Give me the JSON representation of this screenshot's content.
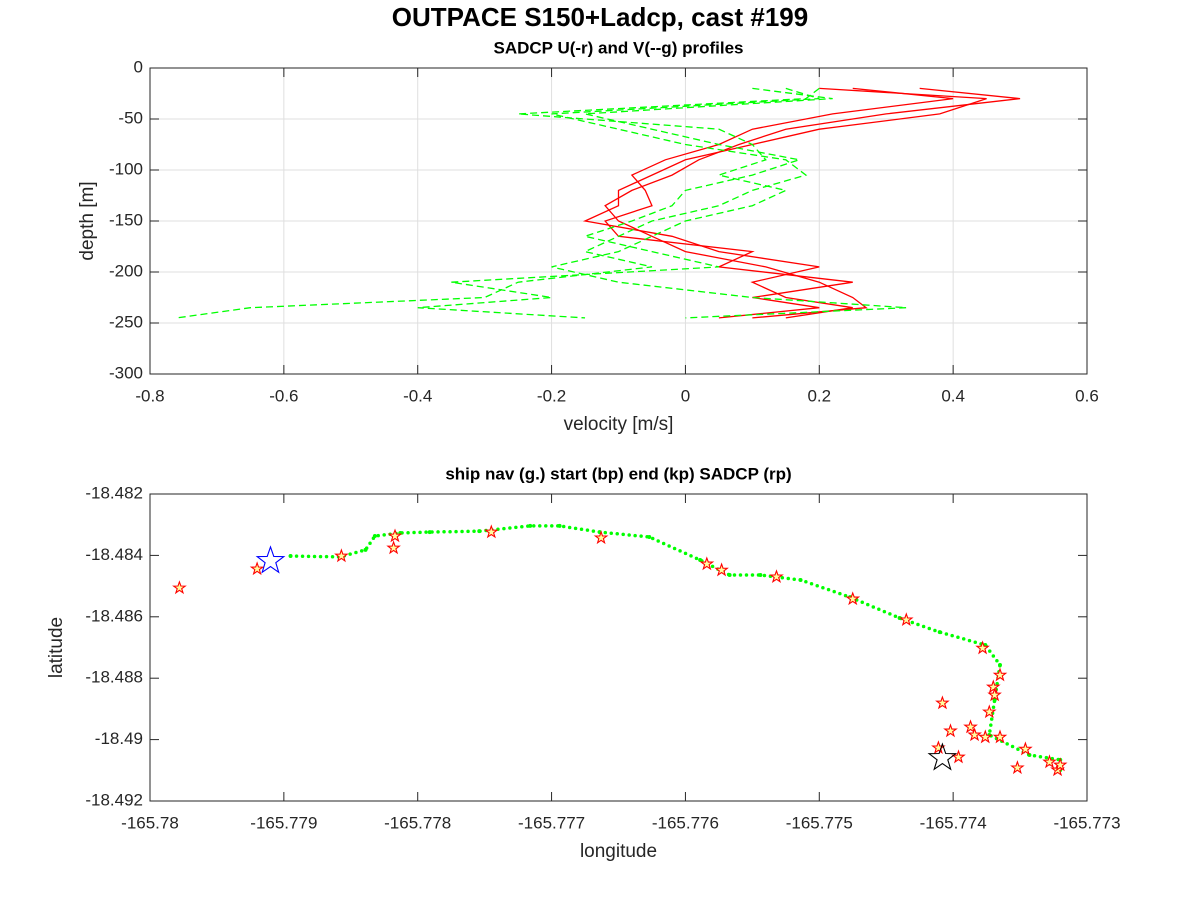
{
  "title": "OUTPACE S150+Ladcp, cast #199",
  "chart_data": [
    {
      "type": "line",
      "title": "SADCP U(-r) and V(--g) profiles",
      "xlabel": "velocity [m/s]",
      "ylabel": "depth [m]",
      "xlim": [
        -0.8,
        0.6
      ],
      "xticks": [
        -0.8,
        -0.6,
        -0.4,
        -0.2,
        0,
        0.2,
        0.4,
        0.6
      ],
      "ylim": [
        -300,
        0
      ],
      "yticks": [
        -300,
        -250,
        -200,
        -150,
        -100,
        -50,
        0
      ],
      "grid": true,
      "series": [
        {
          "color": "#ff0000",
          "dash": false,
          "x": [
            0.35,
            0.5,
            0.3,
            0.15,
            0.08,
            0.02,
            -0.02,
            -0.08,
            -0.12,
            -0.1,
            -0.05,
            0.0,
            0.12,
            0.2,
            0.25,
            0.27,
            0.1
          ],
          "values": [
            -20,
            -30,
            -45,
            -60,
            -75,
            -90,
            -105,
            -120,
            -135,
            -150,
            -165,
            -180,
            -195,
            -210,
            -225,
            -235,
            -245
          ]
        },
        {
          "color": "#ff0000",
          "dash": false,
          "x": [
            0.2,
            0.45,
            0.38,
            0.2,
            0.1,
            0.0,
            -0.05,
            -0.1,
            -0.1,
            -0.15,
            -0.02,
            0.05,
            0.2,
            0.1,
            0.15,
            0.25,
            0.15
          ],
          "values": [
            -20,
            -30,
            -45,
            -60,
            -75,
            -90,
            -105,
            -120,
            -135,
            -150,
            -165,
            -180,
            -195,
            -210,
            -225,
            -235,
            -245
          ]
        },
        {
          "color": "#ff0000",
          "dash": false,
          "x": [
            0.25,
            0.4,
            0.22,
            0.1,
            0.05,
            -0.03,
            -0.08,
            -0.06,
            -0.05,
            -0.12,
            -0.1,
            0.1,
            0.05,
            0.25,
            0.1,
            0.2,
            0.05
          ],
          "values": [
            -20,
            -30,
            -45,
            -60,
            -75,
            -90,
            -105,
            -120,
            -135,
            -150,
            -165,
            -180,
            -195,
            -210,
            -225,
            -235,
            -245
          ]
        },
        {
          "color": "#00ff00",
          "dash": true,
          "x": [
            0.15,
            0.2,
            -0.2,
            -0.1,
            0.0,
            0.15,
            0.18,
            0.1,
            0.05,
            -0.05,
            -0.1,
            -0.15,
            -0.05,
            -0.25,
            -0.3,
            -0.65,
            -0.76
          ],
          "values": [
            -20,
            -30,
            -45,
            -60,
            -75,
            -90,
            -105,
            -120,
            -135,
            -150,
            -165,
            -180,
            -195,
            -210,
            -225,
            -235,
            -245
          ]
        },
        {
          "color": "#00ff00",
          "dash": true,
          "x": [
            0.2,
            0.18,
            -0.25,
            0.05,
            0.1,
            0.12,
            0.05,
            0.15,
            0.1,
            0.0,
            -0.05,
            -0.1,
            -0.2,
            -0.1,
            0.1,
            0.33,
            0.0
          ],
          "values": [
            -20,
            -30,
            -45,
            -60,
            -75,
            -90,
            -105,
            -120,
            -135,
            -150,
            -165,
            -180,
            -195,
            -210,
            -225,
            -235,
            -245
          ]
        },
        {
          "color": "#00ff00",
          "dash": true,
          "x": [
            0.1,
            0.22,
            -0.15,
            -0.05,
            0.05,
            0.17,
            0.1,
            0.0,
            -0.02,
            -0.08,
            -0.15,
            -0.05,
            0.05,
            -0.35,
            -0.2,
            -0.4,
            -0.15
          ],
          "values": [
            -20,
            -30,
            -45,
            -60,
            -75,
            -90,
            -105,
            -120,
            -135,
            -150,
            -165,
            -180,
            -195,
            -210,
            -225,
            -235,
            -245
          ]
        }
      ]
    },
    {
      "type": "scatter",
      "title": "ship nav (g.) start (bp) end (kp) SADCP (rp)",
      "xlabel": "longitude",
      "ylabel": "latitude",
      "xlim": [
        -165.78,
        -165.773
      ],
      "xticks": [
        -165.78,
        -165.779,
        -165.778,
        -165.777,
        -165.776,
        -165.775,
        -165.774,
        -165.773
      ],
      "ylim": [
        -18.492,
        -18.482
      ],
      "yticks": [
        -18.492,
        -18.49,
        -18.488,
        -18.486,
        -18.484,
        -18.482
      ],
      "grid": false,
      "series": [
        {
          "color": "#00ff00",
          "marker": "dot",
          "x": [
            -165.77895,
            -165.77858,
            -165.77839,
            -165.77832,
            -165.77813,
            -165.77791,
            -165.77754,
            -165.77716,
            -165.77694,
            -165.77664,
            -165.77627,
            -165.77589,
            -165.77567,
            -165.77544,
            -165.77514,
            -165.77477,
            -165.7744,
            -165.7741,
            -165.77376,
            -165.77365,
            -165.77369,
            -165.77373,
            -165.77343,
            -165.7732,
            -165.7732
          ],
          "values": [
            -18.48402,
            -18.48405,
            -18.48382,
            -18.48337,
            -18.48327,
            -18.48324,
            -18.48321,
            -18.48304,
            -18.48304,
            -18.48324,
            -18.4834,
            -18.48415,
            -18.48464,
            -18.48464,
            -18.4848,
            -18.48536,
            -18.48604,
            -18.4865,
            -18.48692,
            -18.48757,
            -18.48871,
            -18.48985,
            -18.4905,
            -18.49066,
            -18.49099
          ]
        },
        {
          "color": "#ff0000",
          "marker": "star",
          "x": [
            -165.77978,
            -165.7792,
            -165.77857,
            -165.77817,
            -165.77818,
            -165.77745,
            -165.77663,
            -165.77584,
            -165.77573,
            -165.77532,
            -165.77475,
            -165.77435,
            -165.77378,
            -165.77365,
            -165.7737,
            -165.77369,
            -165.77373,
            -165.77408,
            -165.77402,
            -165.77387,
            -165.77384,
            -165.77376,
            -165.77365,
            -165.77411,
            -165.77396,
            -165.77352,
            -165.77346,
            -165.77328,
            -165.77322,
            -165.7732
          ],
          "values": [
            -18.48506,
            -18.48444,
            -18.48402,
            -18.48337,
            -18.48376,
            -18.48324,
            -18.48343,
            -18.48428,
            -18.48448,
            -18.4847,
            -18.48542,
            -18.4861,
            -18.48702,
            -18.4879,
            -18.48829,
            -18.48855,
            -18.4891,
            -18.48881,
            -18.48972,
            -18.48959,
            -18.48985,
            -18.48992,
            -18.48992,
            -18.49027,
            -18.49057,
            -18.49092,
            -18.49031,
            -18.49073,
            -18.49099,
            -18.49083
          ]
        },
        {
          "color": "#0000ff",
          "marker": "bigstar",
          "x": [
            -165.7791
          ],
          "values": [
            -18.48418
          ]
        },
        {
          "color": "#000000",
          "marker": "bigstar",
          "x": [
            -165.77408
          ],
          "values": [
            -18.4906
          ]
        }
      ]
    }
  ]
}
